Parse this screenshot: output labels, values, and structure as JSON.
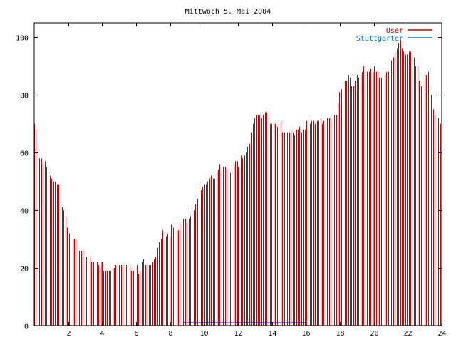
{
  "chart_data": {
    "type": "bar",
    "title": "Mittwoch 5. Mai 2004",
    "xlabel": "",
    "ylabel": "",
    "xlim": [
      0,
      24
    ],
    "ylim": [
      0,
      105
    ],
    "x_ticks": [
      2,
      4,
      6,
      8,
      10,
      12,
      14,
      16,
      18,
      20,
      22,
      24
    ],
    "y_ticks": [
      0,
      20,
      40,
      60,
      80,
      100
    ],
    "grid": false,
    "legend_position": "top-right",
    "series": [
      {
        "name": "User",
        "color": "#cc0000",
        "values": [
          70,
          68,
          63,
          58,
          58,
          56,
          57,
          55,
          55,
          52,
          51,
          50,
          50,
          49,
          49,
          41,
          41,
          40,
          38,
          34,
          32,
          31,
          30,
          30,
          30,
          27,
          26,
          26,
          26,
          25,
          24,
          24,
          24,
          22,
          22,
          22,
          22,
          21,
          20,
          19,
          19,
          19,
          19,
          19,
          19,
          20,
          20,
          21,
          21,
          21,
          21,
          21,
          21,
          21,
          22,
          21,
          19,
          19,
          19,
          21,
          18,
          19,
          22,
          23,
          21,
          21,
          21,
          21,
          22,
          23,
          24,
          27,
          29,
          30,
          33,
          30,
          31,
          32,
          31,
          35,
          34,
          34,
          33,
          33,
          35,
          36,
          37,
          37,
          36,
          37,
          38,
          40,
          40,
          42,
          44,
          45,
          47,
          48,
          49,
          49,
          50,
          51,
          52,
          51,
          51,
          53,
          54,
          56,
          56,
          55,
          55,
          54,
          52,
          53,
          54,
          56,
          57,
          57,
          58,
          59,
          58,
          59,
          60,
          62,
          63,
          67,
          70,
          72,
          73,
          73,
          73,
          72,
          73,
          74,
          74,
          72,
          70,
          70,
          70,
          70,
          69,
          70,
          71,
          67,
          67,
          67,
          67,
          67,
          68,
          67,
          66,
          68,
          68,
          69,
          67,
          68,
          68,
          71,
          73,
          70,
          71,
          71,
          70,
          71,
          71,
          72,
          70,
          71,
          73,
          72,
          72,
          72,
          72,
          73,
          73,
          77,
          81,
          82,
          84,
          85,
          85,
          87,
          86,
          83,
          83,
          85,
          87,
          86,
          87,
          88,
          90,
          87,
          88,
          88,
          89,
          91,
          90,
          88,
          88,
          86,
          86,
          86,
          87,
          88,
          88,
          88,
          92,
          93,
          95,
          96,
          98,
          99,
          96,
          95,
          94,
          94,
          95,
          95,
          92,
          93,
          90,
          90,
          85,
          83,
          86,
          87,
          87,
          88,
          83,
          80,
          75,
          73,
          72,
          72,
          70
        ]
      },
      {
        "name": "Stuttgarter",
        "color": "#0077bb",
        "values": [
          0,
          0,
          0,
          0,
          0,
          0,
          0,
          0,
          0,
          0,
          0,
          0,
          0,
          0,
          0,
          0,
          0,
          0,
          0,
          0,
          0,
          0,
          0,
          0,
          0,
          0,
          0,
          0,
          0,
          0,
          0,
          0,
          0,
          0,
          0,
          0,
          0,
          0,
          0,
          0,
          0,
          0,
          0,
          0,
          0,
          0,
          0,
          0,
          0,
          0,
          0,
          0,
          0,
          0,
          0,
          0,
          0,
          0,
          0,
          0,
          0,
          0,
          0,
          0,
          0,
          0,
          0,
          0,
          0,
          0,
          0,
          0,
          0,
          0,
          0,
          0,
          0,
          0,
          0,
          0,
          0,
          0,
          0,
          0,
          0,
          0,
          0,
          0,
          0,
          0,
          0,
          0,
          0,
          0,
          0,
          0,
          0,
          0,
          0,
          0,
          0,
          0,
          0,
          0,
          0,
          0,
          0,
          0,
          0,
          0,
          0,
          0,
          0,
          0,
          0,
          0,
          0,
          0,
          0,
          0,
          0,
          0,
          0,
          0,
          0,
          0,
          0,
          0,
          0,
          0,
          0,
          0,
          0,
          0,
          0,
          0,
          0,
          0,
          0,
          0,
          0,
          0,
          0,
          0,
          0,
          0,
          0,
          0,
          0,
          0,
          0,
          0,
          0,
          0,
          0,
          0,
          0,
          0,
          0,
          0,
          0,
          0,
          0,
          0,
          0,
          0,
          0,
          0,
          0,
          0,
          0,
          0,
          0,
          0,
          0,
          0,
          0,
          0,
          0,
          0,
          0,
          0,
          0,
          0,
          0,
          0,
          0,
          0,
          0,
          0,
          0,
          0,
          0,
          0,
          0,
          0,
          0,
          0,
          0,
          0,
          0,
          0,
          0,
          0,
          0,
          0,
          0,
          0,
          0,
          0,
          0,
          0,
          0,
          0,
          0,
          0,
          0,
          0,
          0,
          0,
          0,
          0,
          0,
          0,
          0,
          0,
          0,
          0,
          0,
          0,
          0,
          0,
          0,
          0,
          0,
          0,
          0,
          0,
          0,
          0,
          0,
          0,
          0
        ]
      }
    ],
    "secondary_line": {
      "name": "Stuttgarter",
      "color": "#0000aa",
      "points": [
        [
          8.8,
          1
        ],
        [
          12.0,
          1
        ],
        [
          13.0,
          1
        ],
        [
          14.5,
          1
        ],
        [
          16.0,
          1
        ]
      ]
    },
    "highlight_bars": [
      {
        "x": 4.0,
        "value": 22
      },
      {
        "x": 12.0,
        "value": 55
      },
      {
        "x": 20.0,
        "value": 88
      }
    ]
  }
}
